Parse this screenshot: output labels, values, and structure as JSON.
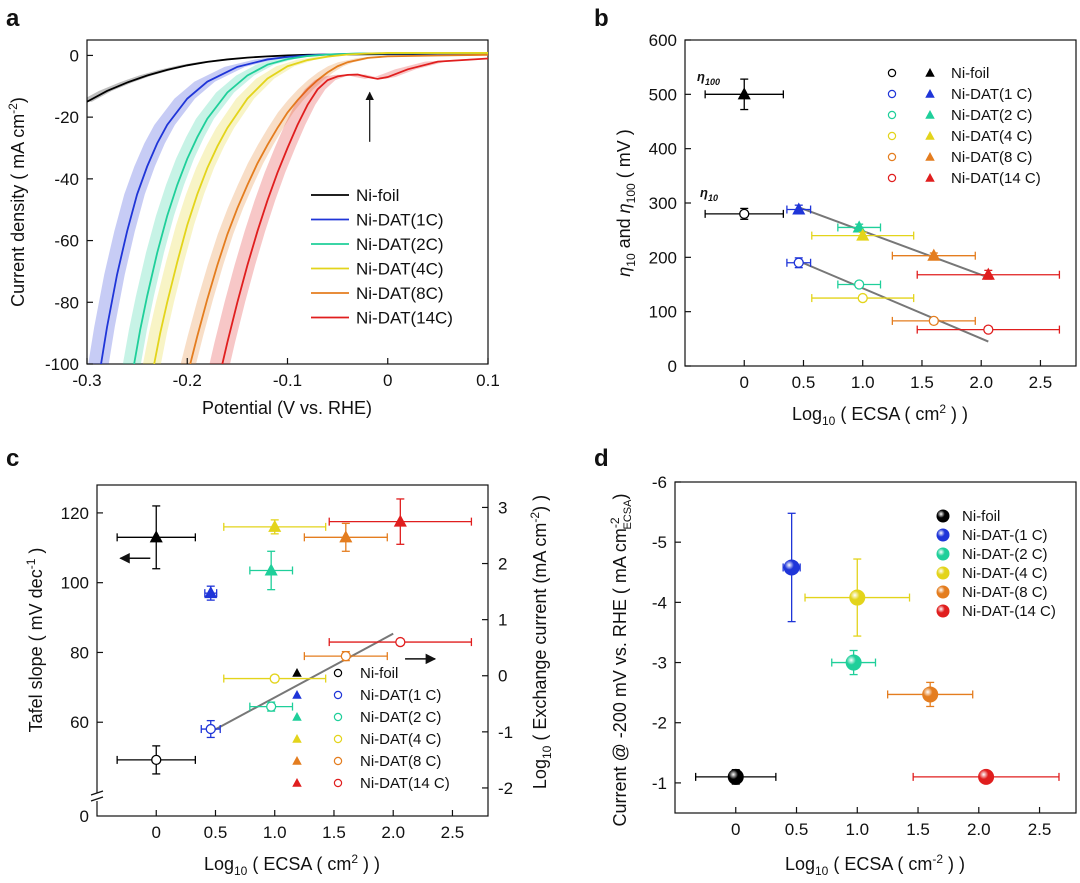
{
  "panel_labels": {
    "a": "a",
    "b": "b",
    "c": "c",
    "d": "d"
  },
  "colors": {
    "Ni-foil": "#000000",
    "1C": "#1f35d8",
    "2C": "#1fcf9a",
    "4C": "#e3d41b",
    "8C": "#e47d1f",
    "14C": "#e01e1e",
    "fit": "#777777"
  },
  "chart_data": [
    {
      "id": "a",
      "type": "line",
      "title": "",
      "xlabel": "Potential (V  vs. RHE)",
      "ylabel": "Current density ( mA cm",
      "ylabel_sup": "-2",
      "ylabel_close": ")",
      "xlim": [
        -0.3,
        0.1
      ],
      "ylim": [
        -100,
        5
      ],
      "xticks": [
        -0.3,
        -0.2,
        -0.1,
        0,
        0.1
      ],
      "xtick_labels": [
        "-0.3",
        "-0.2",
        "-0.1",
        "0",
        "0.1"
      ],
      "yticks": [
        0,
        -20,
        -40,
        -60,
        -80,
        -100
      ],
      "ytick_labels": [
        "0",
        "-20",
        "-40",
        "-60",
        "-80",
        "-100"
      ],
      "legend": [
        "Ni-foil",
        "Ni-DAT(1C)",
        "Ni-DAT(2C)",
        "Ni-DAT(4C)",
        "Ni-DAT(8C)",
        "Ni-DAT(14C)"
      ],
      "series": [
        {
          "name": "Ni-foil",
          "color_key": "Ni-foil",
          "x": [
            -0.3,
            -0.28,
            -0.26,
            -0.24,
            -0.22,
            -0.2,
            -0.18,
            -0.16,
            -0.14,
            -0.12,
            -0.1,
            -0.08,
            -0.05,
            0,
            0.05,
            0.1
          ],
          "y": [
            -15,
            -11.5,
            -8.8,
            -6.5,
            -4.7,
            -3.2,
            -2.1,
            -1.3,
            -0.7,
            -0.3,
            0,
            0.2,
            0.3,
            0.4,
            0.4,
            0.4
          ],
          "band": 2.5
        },
        {
          "name": "Ni-DAT(1C)",
          "color_key": "1C",
          "x": [
            -0.286,
            -0.28,
            -0.27,
            -0.26,
            -0.25,
            -0.24,
            -0.23,
            -0.22,
            -0.2,
            -0.18,
            -0.15,
            -0.12,
            -0.1,
            -0.07,
            -0.04,
            0,
            0.05,
            0.1
          ],
          "y": [
            -100,
            -88,
            -71,
            -57,
            -45,
            -36,
            -28.5,
            -22.5,
            -14,
            -8.5,
            -3.7,
            -1.3,
            -0.5,
            0.2,
            0.5,
            0.6,
            0.6,
            0.6
          ],
          "band": 4
        },
        {
          "name": "Ni-DAT(2C)",
          "color_key": "2C",
          "x": [
            -0.253,
            -0.247,
            -0.24,
            -0.23,
            -0.22,
            -0.21,
            -0.2,
            -0.19,
            -0.18,
            -0.16,
            -0.14,
            -0.12,
            -0.1,
            -0.08,
            -0.06,
            -0.03,
            0,
            0.05,
            0.1
          ],
          "y": [
            -100,
            -89,
            -78,
            -64,
            -52,
            -42,
            -33.5,
            -26.5,
            -20.5,
            -12,
            -6.5,
            -3,
            -1.2,
            -0.2,
            0.3,
            0.6,
            0.7,
            0.7,
            0.7
          ],
          "band": 3.5
        },
        {
          "name": "Ni-DAT(4C)",
          "color_key": "4C",
          "x": [
            -0.233,
            -0.227,
            -0.22,
            -0.21,
            -0.2,
            -0.19,
            -0.18,
            -0.17,
            -0.16,
            -0.14,
            -0.12,
            -0.1,
            -0.08,
            -0.06,
            -0.04,
            -0.02,
            0,
            0.05,
            0.1
          ],
          "y": [
            -100,
            -90,
            -80,
            -67,
            -55,
            -45,
            -36.5,
            -29.5,
            -23.5,
            -14,
            -7.5,
            -3.5,
            -1.5,
            -0.4,
            0.3,
            0.6,
            0.8,
            0.8,
            0.8
          ],
          "band": 3.5
        },
        {
          "name": "Ni-DAT(8C)",
          "color_key": "8C",
          "x": [
            -0.197,
            -0.19,
            -0.18,
            -0.17,
            -0.16,
            -0.15,
            -0.14,
            -0.13,
            -0.12,
            -0.11,
            -0.1,
            -0.09,
            -0.08,
            -0.07,
            -0.06,
            -0.05,
            -0.04,
            -0.02,
            0,
            0.05,
            0.1
          ],
          "y": [
            -100,
            -91,
            -79,
            -68,
            -58,
            -49.5,
            -42,
            -35,
            -29,
            -23.5,
            -18.5,
            -14.5,
            -11,
            -8,
            -5.5,
            -3.5,
            -2.2,
            -0.8,
            -0.3,
            0,
            0.2
          ],
          "band": 3
        },
        {
          "name": "Ni-DAT(14C)",
          "color_key": "14C",
          "x": [
            -0.165,
            -0.16,
            -0.15,
            -0.14,
            -0.13,
            -0.12,
            -0.11,
            -0.1,
            -0.09,
            -0.08,
            -0.07,
            -0.06,
            -0.05,
            -0.04,
            -0.03,
            -0.02,
            -0.01,
            0,
            0.02,
            0.05,
            0.1
          ],
          "y": [
            -100,
            -93,
            -80,
            -68,
            -57,
            -47,
            -38,
            -30,
            -22.5,
            -16,
            -11,
            -8,
            -6.8,
            -6.3,
            -6.2,
            -7,
            -7.6,
            -7,
            -4.5,
            -2,
            -1
          ],
          "band": 4
        }
      ],
      "annotations": [
        {
          "type": "arrow",
          "x": -0.018,
          "y_from": -28,
          "y_to": -12
        }
      ]
    },
    {
      "id": "b",
      "type": "scatter",
      "xlabel": "Log",
      "xlabel_sub": "10",
      "xlabel_rest": " ( ECSA ( cm",
      "xlabel_sup": "2",
      "xlabel_close": " ) )",
      "ylabel_parts": {
        "eta1": "η",
        "sub1": "10",
        "and": " and ",
        "eta2": "η",
        "sub2": "100",
        "unit": " ( mV )"
      },
      "xlim": [
        -0.5,
        2.8
      ],
      "ylim": [
        0,
        600
      ],
      "xticks": [
        0,
        0.5,
        1,
        1.5,
        2,
        2.5
      ],
      "xtick_labels": [
        "0",
        "0.5",
        "1.0",
        "1.5",
        "2.0",
        "2.5"
      ],
      "yticks": [
        0,
        100,
        200,
        300,
        400,
        500,
        600
      ],
      "ytick_labels": [
        "0",
        "100",
        "200",
        "300",
        "400",
        "500",
        "600"
      ],
      "text_labels": {
        "eta100": "η",
        "eta100_sub": "100",
        "eta10": "η",
        "eta10_sub": "10"
      },
      "legend": [
        "Ni-foil",
        "Ni-DAT(1 C)",
        "Ni-DAT(2 C)",
        "Ni-DAT(4 C)",
        "Ni-DAT(8 C)",
        "Ni-DAT(14 C)"
      ],
      "series": [
        {
          "name": "eta100",
          "marker": "triangle",
          "points": [
            {
              "key": "Ni-foil",
              "x": 0,
              "y": 500,
              "xerr": 0.33,
              "yerr": 28
            },
            {
              "key": "1C",
              "x": 0.46,
              "y": 288,
              "xerr": 0.1,
              "yerr": 8
            },
            {
              "key": "2C",
              "x": 0.97,
              "y": 255,
              "xerr": 0.18,
              "yerr": 6
            },
            {
              "key": "4C",
              "x": 1.0,
              "y": 240,
              "xerr": 0.43,
              "yerr": 6
            },
            {
              "key": "8C",
              "x": 1.6,
              "y": 203,
              "xerr": 0.35,
              "yerr": 5
            },
            {
              "key": "14C",
              "x": 2.06,
              "y": 168,
              "xerr": 0.6,
              "yerr": 8
            }
          ],
          "fit": [
            [
              0.46,
              292
            ],
            [
              2.06,
              163
            ]
          ]
        },
        {
          "name": "eta10",
          "marker": "circle-open",
          "points": [
            {
              "key": "Ni-foil",
              "x": 0,
              "y": 280,
              "xerr": 0.33,
              "yerr": 10
            },
            {
              "key": "1C",
              "x": 0.46,
              "y": 190,
              "xerr": 0.1,
              "yerr": 9
            },
            {
              "key": "2C",
              "x": 0.97,
              "y": 150,
              "xerr": 0.18,
              "yerr": 5
            },
            {
              "key": "4C",
              "x": 1.0,
              "y": 125,
              "xerr": 0.43,
              "yerr": 5
            },
            {
              "key": "8C",
              "x": 1.6,
              "y": 83,
              "xerr": 0.35,
              "yerr": 5
            },
            {
              "key": "14C",
              "x": 2.06,
              "y": 67,
              "xerr": 0.6,
              "yerr": 5
            }
          ],
          "fit": [
            [
              0.46,
              193
            ],
            [
              2.06,
              45
            ]
          ]
        }
      ]
    },
    {
      "id": "c",
      "type": "scatter",
      "xlabel": "Log",
      "xlabel_sub": "10",
      "xlabel_rest": " ( ECSA ( cm",
      "xlabel_sup": "2",
      "xlabel_close": " ) )",
      "ylabel": "Tafel slope ( mV dec",
      "ylabel_sup": "-1",
      "ylabel_close": " )",
      "y2label": "Log",
      "y2label_sub": "10",
      "y2label_rest": " ( Exchange current (mA cm",
      "y2label_sup": "-2",
      "y2label_close": ") )",
      "xlim": [
        -0.5,
        2.8
      ],
      "ylim_left": [
        40,
        128
      ],
      "ylim_right": [
        -2.5,
        3.4
      ],
      "xticks": [
        0,
        0.5,
        1,
        1.5,
        2,
        2.5
      ],
      "xtick_labels": [
        "0",
        "0.5",
        "1.0",
        "1.5",
        "2.0",
        "2.5"
      ],
      "yticks": [
        60,
        80,
        100,
        120
      ],
      "ytick_labels": [
        "60",
        "80",
        "100",
        "120"
      ],
      "y_zero_label": "0",
      "y2ticks": [
        -2,
        -1,
        0,
        1,
        2,
        3
      ],
      "y2tick_labels": [
        "-2",
        "-1",
        "0",
        "1",
        "2",
        "3"
      ],
      "legend": [
        "Ni-foil",
        "Ni-DAT(1 C)",
        "Ni-DAT(2 C)",
        "Ni-DAT(4 C)",
        "Ni-DAT(8 C)",
        "Ni-DAT(14 C)"
      ],
      "series": [
        {
          "name": "Tafel slope",
          "axis": "left",
          "marker": "triangle",
          "points": [
            {
              "key": "Ni-foil",
              "x": 0,
              "y": 113,
              "xerr": 0.33,
              "yerr": 9
            },
            {
              "key": "1C",
              "x": 0.46,
              "y": 97,
              "xerr": 0.05,
              "yerr": 2
            },
            {
              "key": "2C",
              "x": 0.97,
              "y": 103.5,
              "xerr": 0.18,
              "yerr": 5.5
            },
            {
              "key": "4C",
              "x": 1.0,
              "y": 116,
              "xerr": 0.43,
              "yerr": 2
            },
            {
              "key": "8C",
              "x": 1.6,
              "y": 113,
              "xerr": 0.35,
              "yerr": 4
            },
            {
              "key": "14C",
              "x": 2.06,
              "y": 117.5,
              "xerr": 0.6,
              "yerr": 6.5
            }
          ]
        },
        {
          "name": "Exchange current",
          "axis": "right",
          "marker": "circle-open",
          "points": [
            {
              "key": "Ni-foil",
              "x": 0,
              "y": -1.5,
              "xerr": 0.33,
              "yerr": 0.25
            },
            {
              "key": "1C",
              "x": 0.46,
              "y": -0.95,
              "xerr": 0.08,
              "yerr": 0.15
            },
            {
              "key": "2C",
              "x": 0.97,
              "y": -0.55,
              "xerr": 0.18,
              "yerr": 0.08
            },
            {
              "key": "4C",
              "x": 1.0,
              "y": -0.05,
              "xerr": 0.43,
              "yerr": 0.05
            },
            {
              "key": "8C",
              "x": 1.6,
              "y": 0.35,
              "xerr": 0.35,
              "yerr": 0.08
            },
            {
              "key": "14C",
              "x": 2.06,
              "y": 0.6,
              "xerr": 0.6,
              "yerr": 0.05
            }
          ],
          "fit": [
            [
              0.46,
              -1.0
            ],
            [
              2.0,
              0.75
            ]
          ]
        }
      ],
      "annotations": [
        {
          "type": "arrow-left",
          "x": -0.05,
          "y_left": 107
        },
        {
          "type": "arrow-right",
          "x": 2.1,
          "y_right": 0.3
        }
      ]
    },
    {
      "id": "d",
      "type": "scatter",
      "xlabel": "Log",
      "xlabel_sub": "10",
      "xlabel_rest": " ( ECSA ( cm",
      "xlabel_sup": "-2",
      "xlabel_close": " ) )",
      "ylabel": "Current @ -200 mV vs. RHE ( mA cm",
      "ylabel_sup": "-2",
      "ylabel_sub": "ECSA",
      "ylabel_close": ")",
      "xlim": [
        -0.5,
        2.8
      ],
      "ylim": [
        -0.5,
        -6
      ],
      "xticks": [
        0,
        0.5,
        1,
        1.5,
        2,
        2.5
      ],
      "xtick_labels": [
        "0",
        "0.5",
        "1.0",
        "1.5",
        "2.0",
        "2.5"
      ],
      "yticks": [
        -1,
        -2,
        -3,
        -4,
        -5,
        -6
      ],
      "ytick_labels": [
        "-1",
        "-2",
        "-3",
        "-4",
        "-5",
        "-6"
      ],
      "legend": [
        "Ni-foil",
        "Ni-DAT-(1 C)",
        "Ni-DAT-(2 C)",
        "Ni-DAT-(4 C)",
        "Ni-DAT-(8 C)",
        "Ni-DAT-(14 C)"
      ],
      "series": [
        {
          "name": "Current @ -200 mV",
          "marker": "sphere",
          "points": [
            {
              "key": "Ni-foil",
              "x": 0,
              "y": -1.1,
              "xerr": 0.33,
              "yerr": 0.12
            },
            {
              "key": "1C",
              "x": 0.46,
              "y": -4.58,
              "xerr": 0.07,
              "yerr": 0.9
            },
            {
              "key": "2C",
              "x": 0.97,
              "y": -3.0,
              "xerr": 0.18,
              "yerr": 0.2
            },
            {
              "key": "4C",
              "x": 1.0,
              "y": -4.08,
              "xerr": 0.43,
              "yerr": 0.64
            },
            {
              "key": "8C",
              "x": 1.6,
              "y": -2.47,
              "xerr": 0.35,
              "yerr": 0.2
            },
            {
              "key": "14C",
              "x": 2.06,
              "y": -1.1,
              "xerr": 0.6,
              "yerr": 0.1
            }
          ]
        }
      ]
    }
  ]
}
